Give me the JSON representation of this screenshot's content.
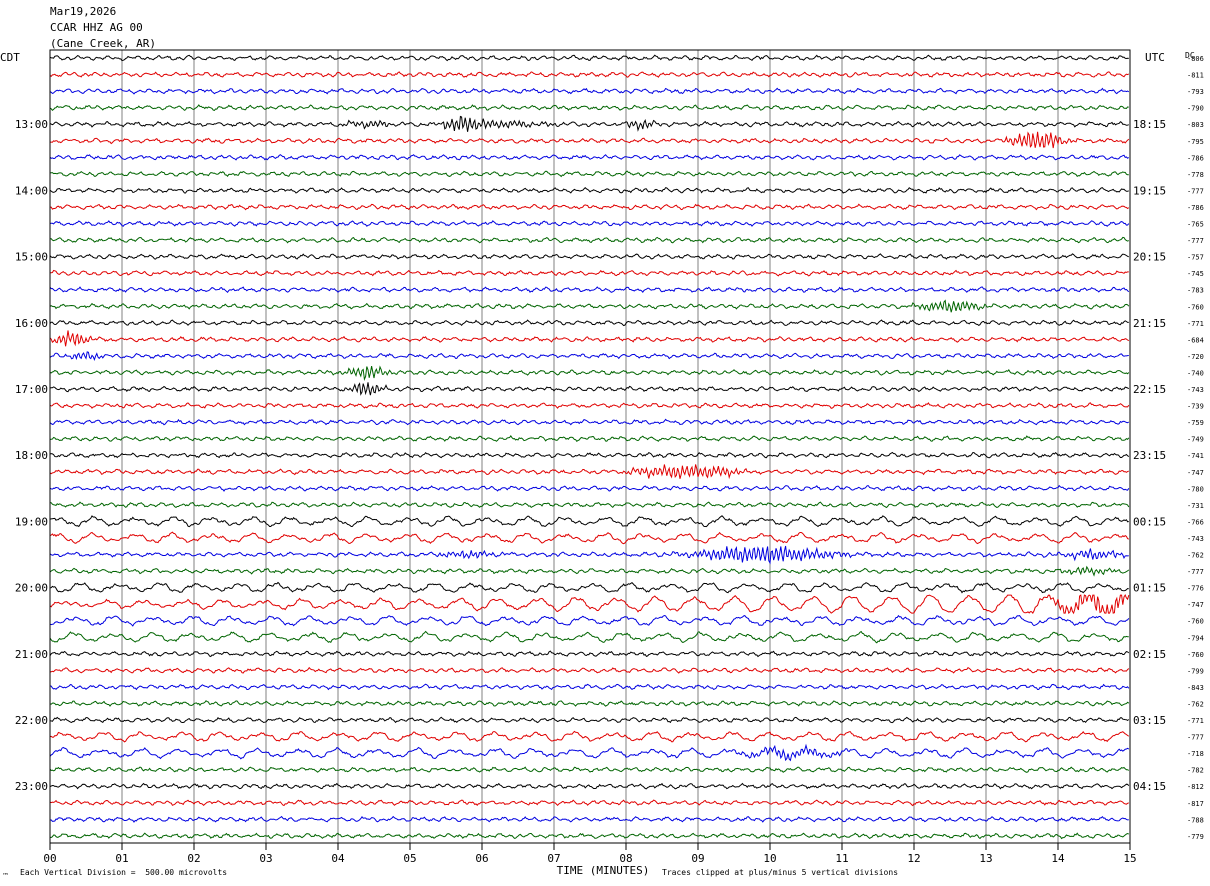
{
  "header": {
    "date": "Mar19,2026",
    "station": "CCAR HHZ AG 00",
    "location": "(Cane Creek, AR)"
  },
  "left_tz": "CDT",
  "right_tz": "UTC",
  "dc_header": "DC",
  "footer": {
    "scale_note": "Each Vertical Division =  500.00 microvolts",
    "clip_note": "Traces clipped at plus/minus 5 vertical divisions",
    "corner_mark": "™"
  },
  "colors": {
    "black": "#000000",
    "red": "#e00000",
    "blue": "#0000e0",
    "green": "#006400",
    "grid": "#808080"
  },
  "chart_data": {
    "type": "line",
    "title": "Mar19,2026",
    "xlabel": "TIME (MINUTES)",
    "ylabel": "",
    "xlim": [
      0,
      15
    ],
    "x_tick_labels": [
      "00",
      "01",
      "02",
      "03",
      "04",
      "05",
      "06",
      "07",
      "08",
      "09",
      "10",
      "11",
      "12",
      "13",
      "14",
      "15"
    ],
    "minutes_per_line": 15,
    "trace_colors_cycle": [
      "black",
      "red",
      "blue",
      "green"
    ],
    "left_hour_labels": [
      "13:00",
      "14:00",
      "15:00",
      "16:00",
      "17:00",
      "18:00",
      "19:00",
      "20:00",
      "21:00",
      "22:00",
      "23:00"
    ],
    "right_hour_labels": [
      "18:15",
      "19:15",
      "20:15",
      "21:15",
      "22:15",
      "23:15",
      "00:15",
      "01:15",
      "02:15",
      "03:15",
      "04:15"
    ],
    "first_hour_label_row": 4,
    "dc_offsets": [
      -806,
      -811,
      -793,
      -790,
      -803,
      -795,
      -786,
      -778,
      -777,
      -786,
      -765,
      -777,
      -757,
      -745,
      -783,
      -760,
      -771,
      -684,
      -720,
      -740,
      -743,
      -739,
      -759,
      -749,
      -741,
      -747,
      -780,
      -731,
      -766,
      -743,
      -762,
      -777,
      -776,
      -747,
      -760,
      -794,
      -760,
      -799,
      -843,
      -762,
      -771,
      -777,
      -718,
      -782,
      -812,
      -817,
      -788,
      -779
    ],
    "events": [
      {
        "row": 4,
        "minute": 4.4,
        "width": 0.5,
        "amp": 3
      },
      {
        "row": 4,
        "minute": 5.7,
        "width": 0.35,
        "amp": 6
      },
      {
        "row": 4,
        "minute": 6.3,
        "width": 0.9,
        "amp": 3
      },
      {
        "row": 4,
        "minute": 8.2,
        "width": 0.3,
        "amp": 4
      },
      {
        "row": 5,
        "minute": 13.7,
        "width": 0.5,
        "amp": 9
      },
      {
        "row": 15,
        "minute": 12.5,
        "width": 0.6,
        "amp": 5
      },
      {
        "row": 17,
        "minute": 0.3,
        "width": 0.3,
        "amp": 7
      },
      {
        "row": 18,
        "minute": 0.5,
        "width": 0.3,
        "amp": 4
      },
      {
        "row": 19,
        "minute": 4.4,
        "width": 0.4,
        "amp": 6
      },
      {
        "row": 20,
        "minute": 4.4,
        "width": 0.3,
        "amp": 7
      },
      {
        "row": 25,
        "minute": 8.6,
        "width": 0.7,
        "amp": 5
      },
      {
        "row": 25,
        "minute": 9.2,
        "width": 0.6,
        "amp": 4
      },
      {
        "row": 30,
        "minute": 5.8,
        "width": 0.6,
        "amp": 3
      },
      {
        "row": 30,
        "minute": 9.9,
        "width": 1.2,
        "amp": 8
      },
      {
        "row": 30,
        "minute": 14.5,
        "width": 0.6,
        "amp": 4
      },
      {
        "row": 31,
        "minute": 14.4,
        "width": 0.5,
        "amp": 3
      },
      {
        "row": 33,
        "minute": 14.6,
        "width": 0.9,
        "amp": 9
      },
      {
        "row": 42,
        "minute": 10.3,
        "width": 0.9,
        "amp": 4
      }
    ],
    "swell_rows": [
      28,
      29,
      32,
      33,
      34,
      35,
      41,
      42
    ]
  }
}
